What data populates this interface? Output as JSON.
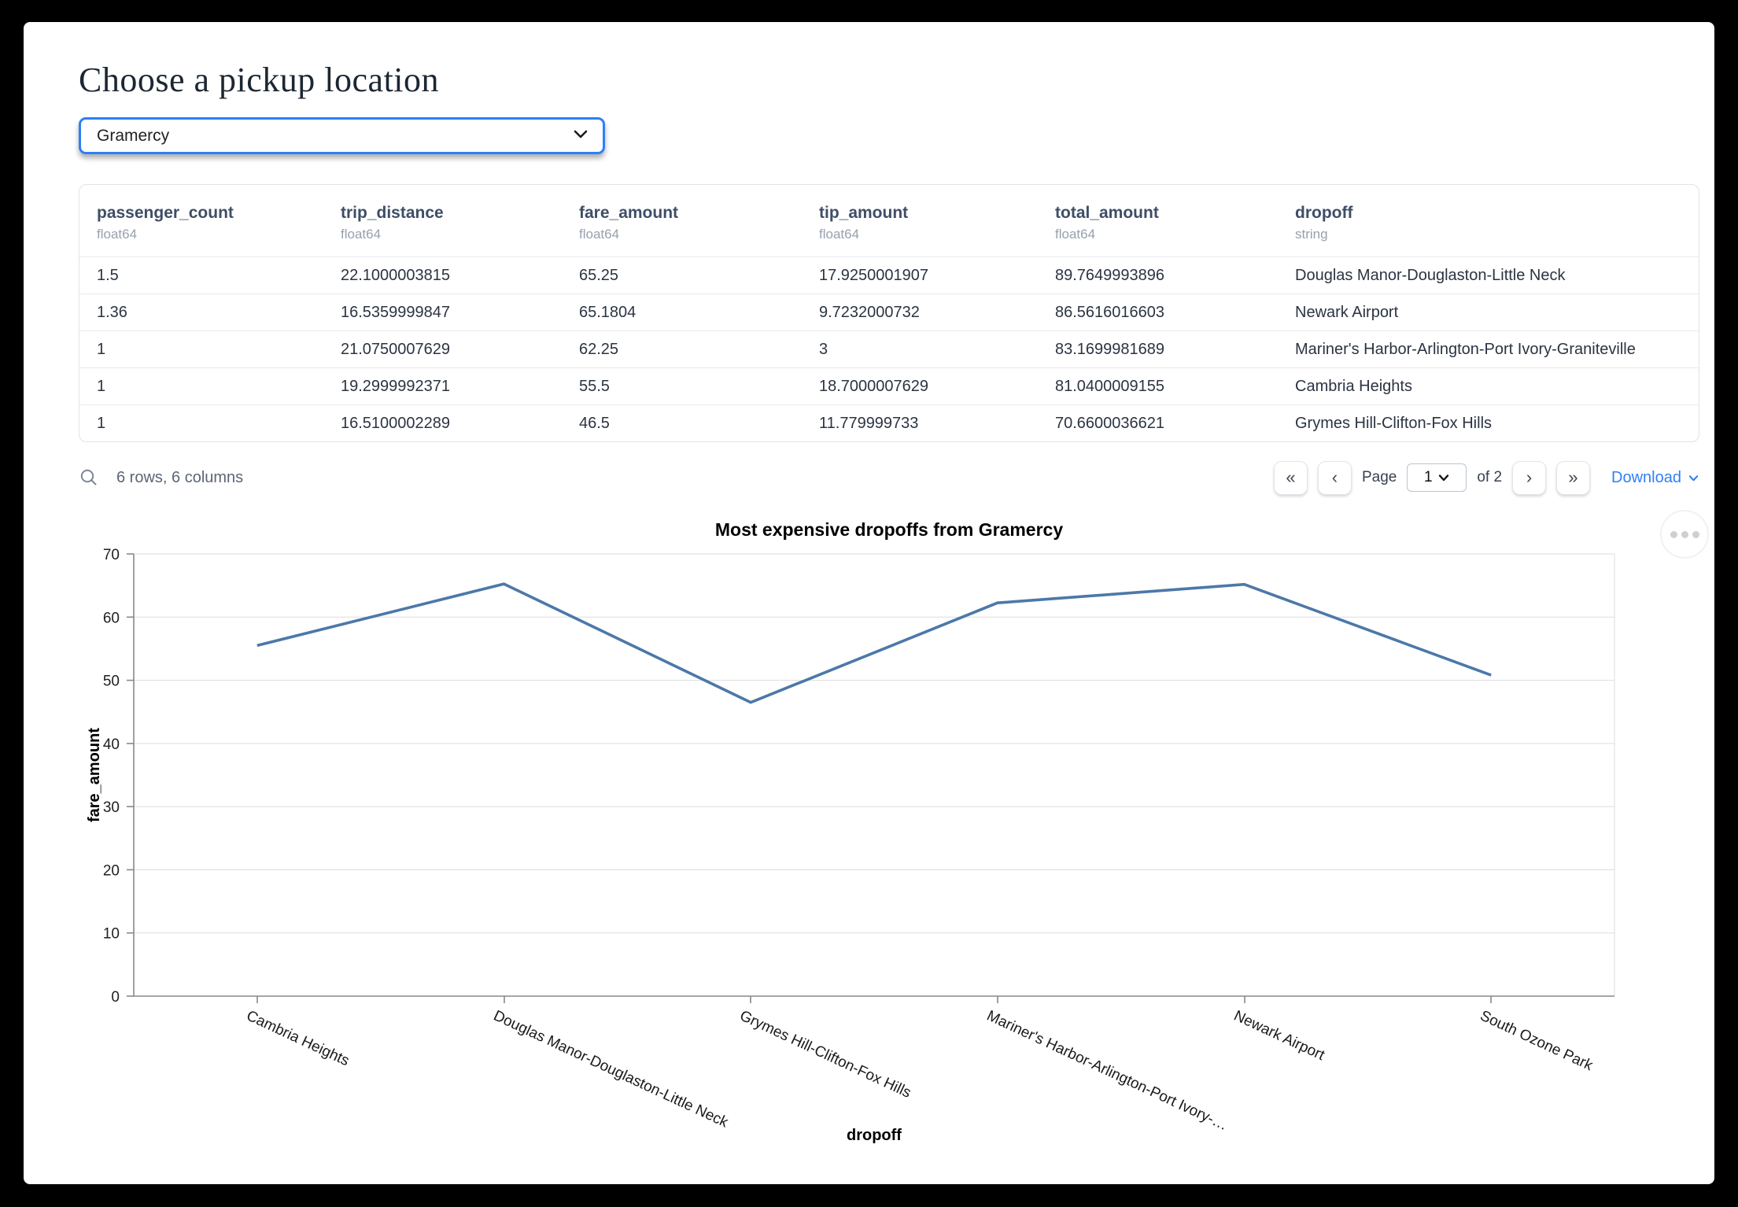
{
  "page": {
    "title": "Choose a pickup location"
  },
  "pickup_select": {
    "value": "Gramercy"
  },
  "table": {
    "columns": [
      {
        "name": "passenger_count",
        "type": "float64"
      },
      {
        "name": "trip_distance",
        "type": "float64"
      },
      {
        "name": "fare_amount",
        "type": "float64"
      },
      {
        "name": "tip_amount",
        "type": "float64"
      },
      {
        "name": "total_amount",
        "type": "float64"
      },
      {
        "name": "dropoff",
        "type": "string"
      }
    ],
    "rows": [
      [
        "1.5",
        "22.1000003815",
        "65.25",
        "17.9250001907",
        "89.7649993896",
        "Douglas Manor-Douglaston-Little Neck"
      ],
      [
        "1.36",
        "16.5359999847",
        "65.1804",
        "9.7232000732",
        "86.5616016603",
        "Newark Airport"
      ],
      [
        "1",
        "21.0750007629",
        "62.25",
        "3",
        "83.1699981689",
        "Mariner's Harbor-Arlington-Port Ivory-Graniteville"
      ],
      [
        "1",
        "19.2999992371",
        "55.5",
        "18.7000007629",
        "81.0400009155",
        "Cambria Heights"
      ],
      [
        "1",
        "16.5100002289",
        "46.5",
        "11.779999733",
        "70.6600036621",
        "Grymes Hill-Clifton-Fox Hills"
      ]
    ],
    "summary": "6 rows, 6 columns"
  },
  "pagination": {
    "first_label": "«",
    "prev_label": "‹",
    "page_label": "Page",
    "page_value": "1",
    "total_label": "of 2",
    "next_label": "›",
    "last_label": "»",
    "download_label": "Download"
  },
  "chart_data": {
    "type": "line",
    "title": "Most expensive dropoffs from Gramercy",
    "xlabel": "dropoff",
    "ylabel": "fare_amount",
    "categories": [
      "Cambria Heights",
      "Douglas Manor-Douglaston-Little Neck",
      "Grymes Hill-Clifton-Fox Hills",
      "Mariner's Harbor-Arlington-Port Ivory-Graniteville",
      "Newark Airport",
      "South Ozone Park"
    ],
    "x_labels_display": [
      "Cambria Heights",
      "Douglas Manor-Douglaston-Little Neck",
      "Grymes Hill-Clifton-Fox Hills",
      "Mariner's Harbor-Arlington-Port Ivory-…",
      "Newark Airport",
      "South Ozone Park"
    ],
    "values": [
      55.5,
      65.25,
      46.5,
      62.25,
      65.1804,
      50.8
    ],
    "ylim": [
      0,
      70
    ],
    "y_ticks": [
      "70",
      "60",
      "50",
      "40",
      "30",
      "20",
      "10",
      "0"
    ],
    "line_color": "#4c78a8",
    "grid": true,
    "legend": "none"
  }
}
